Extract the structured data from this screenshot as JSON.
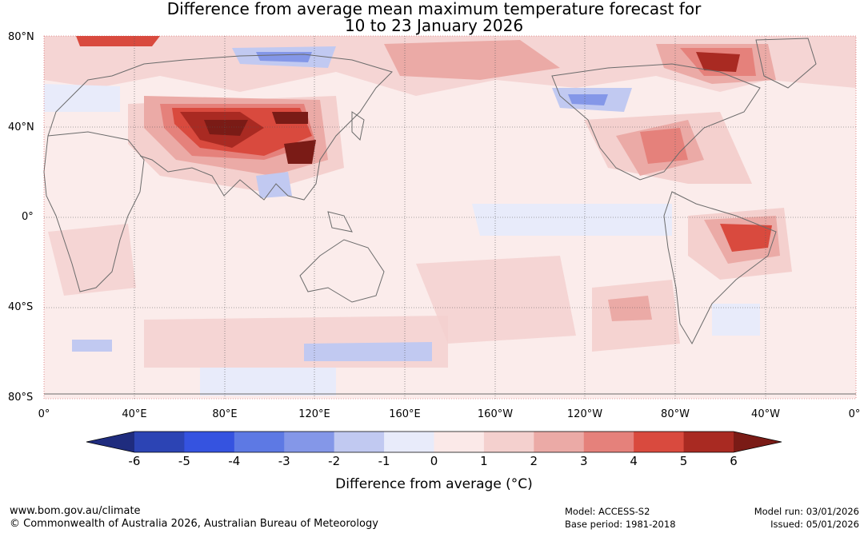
{
  "title_line1": "Difference from average mean maximum temperature forecast for",
  "title_line2": "10 to 23 January 2026",
  "lat_labels": [
    "80°N",
    "40°N",
    "0°",
    "40°S",
    "80°S"
  ],
  "lon_labels": [
    "0°",
    "40°E",
    "80°E",
    "120°E",
    "160°E",
    "160°W",
    "120°W",
    "80°W",
    "40°W",
    "0°"
  ],
  "colorbar": {
    "ticks": [
      "-6",
      "-5",
      "-4",
      "-3",
      "-2",
      "-1",
      "0",
      "1",
      "2",
      "3",
      "4",
      "5",
      "6"
    ],
    "colors": [
      "#1f2c7e",
      "#2c44b4",
      "#3553e0",
      "#5d79e4",
      "#8497e8",
      "#c1c9f1",
      "#e8ebfa",
      "#fbe9e8",
      "#f4d0ce",
      "#ebaaa6",
      "#e5817b",
      "#d94a3e",
      "#a92a22",
      "#7a1b16"
    ],
    "label": "Difference from average (°C)"
  },
  "map": {
    "ocean_color": "#fbeceb",
    "coast_color": "#6b6b6b"
  },
  "footer": {
    "url": "www.bom.gov.au/climate",
    "copyright": "© Commonwealth of Australia 2026, Australian Bureau of Meteorology",
    "model": "Model: ACCESS-S2",
    "base_period": "Base period: 1981-2018",
    "model_run": "Model run: 03/01/2026",
    "issued": "Issued: 05/01/2026"
  }
}
